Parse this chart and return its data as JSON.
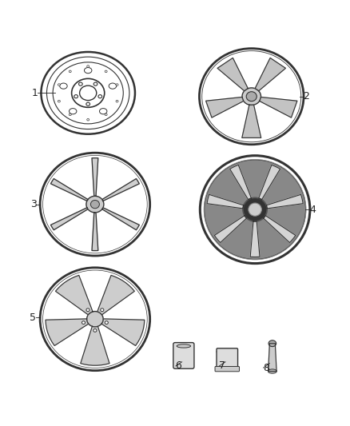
{
  "title": "",
  "background_color": "#ffffff",
  "figure_width": 4.38,
  "figure_height": 5.33,
  "dpi": 100,
  "label_color": "#222222",
  "line_color": "#333333",
  "spoke_color": "#555555",
  "rim_color": "#444444",
  "label_fontsize": 9
}
